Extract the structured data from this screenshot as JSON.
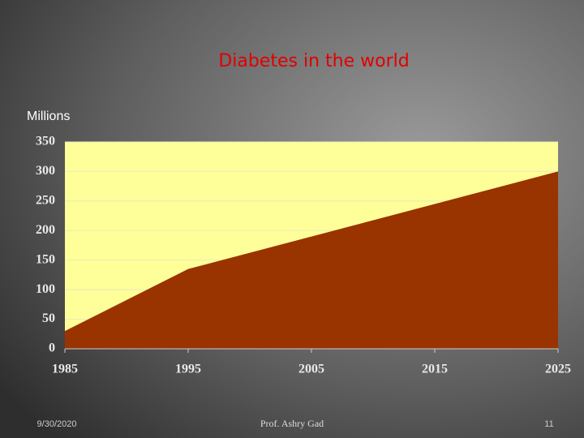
{
  "chart_data": {
    "type": "area",
    "title": "Diabetes in the world",
    "y_label": "Millions",
    "x": [
      1985,
      1995,
      2005,
      2015,
      2025
    ],
    "values": [
      30,
      135,
      190,
      245,
      300
    ],
    "color": "#993300",
    "plot_background": "#ffff99",
    "xlim": [
      1985,
      2025
    ],
    "xticks": [
      1985,
      1995,
      2005,
      2015,
      2025
    ],
    "ylim": [
      0,
      350
    ],
    "yticks": [
      0,
      50,
      100,
      150,
      200,
      250,
      300,
      350
    ],
    "grid": true
  },
  "footer": {
    "date": "9/30/2020",
    "author": "Prof. Ashry Gad",
    "page": "11"
  }
}
